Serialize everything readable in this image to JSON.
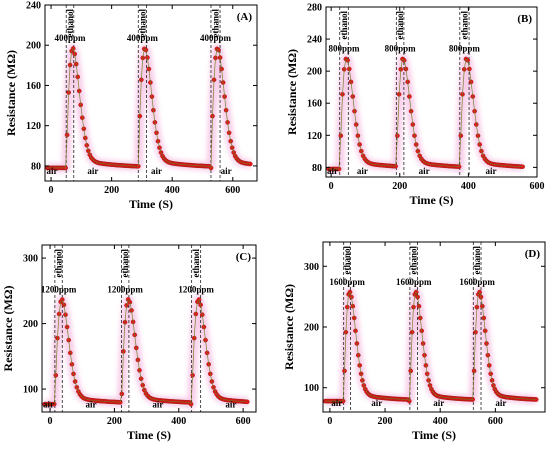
{
  "chart_data": [
    {
      "id": "A",
      "type": "scatter",
      "panel_label": "(A)",
      "xlabel": "Time (S)",
      "ylabel": "Resistance (MΩ)",
      "xlim": [
        -20,
        680
      ],
      "ylim": [
        65,
        240
      ],
      "xticks": [
        0,
        200,
        400,
        600
      ],
      "yticks": [
        80,
        120,
        160,
        200,
        240
      ],
      "gas_on": [
        50,
        288,
        528
      ],
      "gas_off": [
        75,
        315,
        558
      ],
      "cycle_period": 240,
      "baseline": 78,
      "peak": 197,
      "peak_offset": 22,
      "recovery_time_constant": 32,
      "x_end": 660,
      "concentration": "400ppm",
      "gas_label": "ethanol",
      "air_label": "air",
      "air_positions": [
        [
          -15,
          72
        ],
        [
          120,
          72
        ],
        [
          330,
          72
        ],
        [
          560,
          72
        ]
      ]
    },
    {
      "id": "B",
      "type": "scatter",
      "panel_label": "(B)",
      "xlabel": "Time (S)",
      "ylabel": "Resistance (MΩ)",
      "xlim": [
        -15,
        600
      ],
      "ylim": [
        68,
        280
      ],
      "xticks": [
        0,
        200,
        400,
        600
      ],
      "yticks": [
        80,
        120,
        160,
        200,
        240,
        280
      ],
      "gas_on": [
        25,
        190,
        375
      ],
      "gas_off": [
        50,
        212,
        402
      ],
      "cycle_period": 185,
      "baseline": 78,
      "peak": 216,
      "peak_offset": 20,
      "recovery_time_constant": 28,
      "x_end": 560,
      "concentration": "800ppm",
      "gas_label": "ethanol",
      "air_label": "air",
      "air_positions": [
        [
          -12,
          72
        ],
        [
          75,
          72
        ],
        [
          255,
          72
        ],
        [
          450,
          72
        ]
      ]
    },
    {
      "id": "C",
      "type": "scatter",
      "panel_label": "(C)",
      "xlabel": "Time (S)",
      "ylabel": "Resistance (MΩ)",
      "xlim": [
        -25,
        640
      ],
      "ylim": [
        65,
        320
      ],
      "xticks": [
        0,
        200,
        400,
        600
      ],
      "yticks": [
        100,
        200,
        300
      ],
      "gas_on": [
        15,
        222,
        440
      ],
      "gas_off": [
        38,
        245,
        468
      ],
      "cycle_period": 215,
      "baseline": 77,
      "peak": 237,
      "peak_offset": 22,
      "recovery_time_constant": 30,
      "x_end": 615,
      "concentration": "1200ppm",
      "gas_label": "ethanol",
      "air_label": "air",
      "air_positions": [
        [
          -22,
          72
        ],
        [
          110,
          72
        ],
        [
          318,
          72
        ],
        [
          545,
          72
        ]
      ]
    },
    {
      "id": "D",
      "type": "scatter",
      "panel_label": "(D)",
      "xlabel": "Time (S)",
      "ylabel": "Resistance (MΩ)",
      "xlim": [
        -25,
        780
      ],
      "ylim": [
        60,
        340
      ],
      "xticks": [
        0,
        200,
        400,
        600
      ],
      "yticks": [
        100,
        200,
        300
      ],
      "gas_on": [
        50,
        290,
        520
      ],
      "gas_off": [
        75,
        318,
        548
      ],
      "cycle_period": 235,
      "baseline": 78,
      "peak": 258,
      "peak_offset": 22,
      "recovery_time_constant": 32,
      "x_end": 750,
      "concentration": "1600ppm",
      "gas_label": "ethanol",
      "air_label": "air",
      "air_positions": [
        [
          5,
          70
        ],
        [
          150,
          70
        ],
        [
          375,
          70
        ],
        [
          600,
          70
        ]
      ]
    }
  ]
}
